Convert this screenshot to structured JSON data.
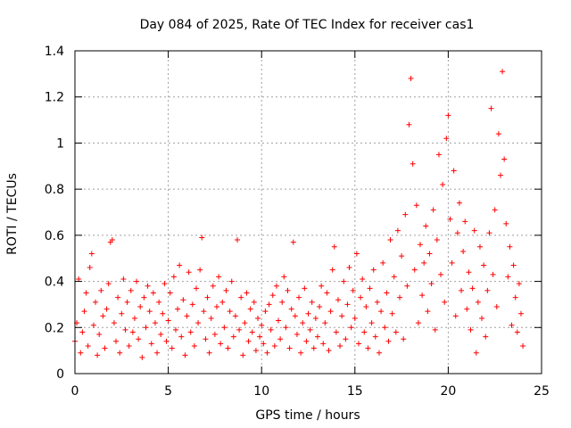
{
  "chart_data": {
    "type": "scatter",
    "title": "Day 084 of 2025, Rate Of TEC Index for receiver cas1",
    "xlabel": "GPS time / hours",
    "ylabel": "ROTI / TECUs",
    "xlim": [
      0,
      25
    ],
    "ylim": [
      0,
      1.4
    ],
    "x_ticks": [
      0,
      5,
      10,
      15,
      20,
      25
    ],
    "y_ticks": [
      0,
      0.2,
      0.4,
      0.6,
      0.8,
      1,
      1.2,
      1.4
    ],
    "grid": true,
    "marker": "+",
    "marker_color": "#ff0000",
    "points": [
      [
        0.0,
        0.14
      ],
      [
        0.1,
        0.22
      ],
      [
        0.2,
        0.41
      ],
      [
        0.3,
        0.09
      ],
      [
        0.4,
        0.18
      ],
      [
        0.5,
        0.27
      ],
      [
        0.6,
        0.35
      ],
      [
        0.7,
        0.12
      ],
      [
        0.8,
        0.46
      ],
      [
        0.9,
        0.52
      ],
      [
        1.0,
        0.21
      ],
      [
        1.1,
        0.31
      ],
      [
        1.2,
        0.08
      ],
      [
        1.3,
        0.17
      ],
      [
        1.4,
        0.36
      ],
      [
        1.5,
        0.25
      ],
      [
        1.6,
        0.11
      ],
      [
        1.7,
        0.28
      ],
      [
        1.8,
        0.39
      ],
      [
        1.9,
        0.57
      ],
      [
        2.0,
        0.58
      ],
      [
        2.1,
        0.22
      ],
      [
        2.2,
        0.14
      ],
      [
        2.3,
        0.33
      ],
      [
        2.4,
        0.09
      ],
      [
        2.5,
        0.26
      ],
      [
        2.6,
        0.41
      ],
      [
        2.7,
        0.19
      ],
      [
        2.8,
        0.31
      ],
      [
        2.9,
        0.12
      ],
      [
        3.0,
        0.36
      ],
      [
        3.1,
        0.18
      ],
      [
        3.2,
        0.24
      ],
      [
        3.3,
        0.4
      ],
      [
        3.4,
        0.15
      ],
      [
        3.5,
        0.29
      ],
      [
        3.6,
        0.07
      ],
      [
        3.7,
        0.33
      ],
      [
        3.8,
        0.2
      ],
      [
        3.9,
        0.38
      ],
      [
        4.0,
        0.27
      ],
      [
        4.1,
        0.13
      ],
      [
        4.2,
        0.35
      ],
      [
        4.3,
        0.22
      ],
      [
        4.4,
        0.09
      ],
      [
        4.5,
        0.31
      ],
      [
        4.6,
        0.17
      ],
      [
        4.7,
        0.26
      ],
      [
        4.8,
        0.39
      ],
      [
        4.9,
        0.14
      ],
      [
        5.0,
        0.23
      ],
      [
        5.1,
        0.35
      ],
      [
        5.2,
        0.11
      ],
      [
        5.3,
        0.42
      ],
      [
        5.4,
        0.19
      ],
      [
        5.5,
        0.28
      ],
      [
        5.6,
        0.47
      ],
      [
        5.7,
        0.16
      ],
      [
        5.8,
        0.32
      ],
      [
        5.9,
        0.08
      ],
      [
        6.0,
        0.25
      ],
      [
        6.1,
        0.44
      ],
      [
        6.2,
        0.18
      ],
      [
        6.3,
        0.3
      ],
      [
        6.4,
        0.12
      ],
      [
        6.5,
        0.37
      ],
      [
        6.6,
        0.22
      ],
      [
        6.7,
        0.45
      ],
      [
        6.8,
        0.59
      ],
      [
        6.9,
        0.27
      ],
      [
        7.0,
        0.15
      ],
      [
        7.1,
        0.33
      ],
      [
        7.2,
        0.09
      ],
      [
        7.3,
        0.24
      ],
      [
        7.4,
        0.38
      ],
      [
        7.5,
        0.17
      ],
      [
        7.6,
        0.29
      ],
      [
        7.7,
        0.42
      ],
      [
        7.8,
        0.13
      ],
      [
        7.9,
        0.31
      ],
      [
        8.0,
        0.2
      ],
      [
        8.1,
        0.36
      ],
      [
        8.2,
        0.11
      ],
      [
        8.3,
        0.27
      ],
      [
        8.4,
        0.4
      ],
      [
        8.5,
        0.16
      ],
      [
        8.6,
        0.25
      ],
      [
        8.7,
        0.58
      ],
      [
        8.8,
        0.19
      ],
      [
        8.9,
        0.33
      ],
      [
        9.0,
        0.08
      ],
      [
        9.1,
        0.22
      ],
      [
        9.2,
        0.35
      ],
      [
        9.3,
        0.14
      ],
      [
        9.4,
        0.28
      ],
      [
        9.5,
        0.18
      ],
      [
        9.6,
        0.31
      ],
      [
        9.7,
        0.1
      ],
      [
        9.8,
        0.24
      ],
      [
        9.9,
        0.16
      ],
      [
        10.0,
        0.21
      ],
      [
        10.1,
        0.13
      ],
      [
        10.2,
        0.27
      ],
      [
        10.3,
        0.09
      ],
      [
        10.4,
        0.3
      ],
      [
        10.5,
        0.19
      ],
      [
        10.6,
        0.34
      ],
      [
        10.7,
        0.12
      ],
      [
        10.8,
        0.38
      ],
      [
        10.9,
        0.23
      ],
      [
        11.0,
        0.15
      ],
      [
        11.1,
        0.31
      ],
      [
        11.2,
        0.42
      ],
      [
        11.3,
        0.2
      ],
      [
        11.4,
        0.36
      ],
      [
        11.5,
        0.11
      ],
      [
        11.6,
        0.28
      ],
      [
        11.7,
        0.57
      ],
      [
        11.8,
        0.25
      ],
      [
        11.9,
        0.17
      ],
      [
        12.0,
        0.33
      ],
      [
        12.1,
        0.09
      ],
      [
        12.2,
        0.22
      ],
      [
        12.3,
        0.37
      ],
      [
        12.4,
        0.14
      ],
      [
        12.5,
        0.26
      ],
      [
        12.6,
        0.19
      ],
      [
        12.7,
        0.31
      ],
      [
        12.8,
        0.11
      ],
      [
        12.9,
        0.24
      ],
      [
        13.0,
        0.16
      ],
      [
        13.1,
        0.29
      ],
      [
        13.2,
        0.38
      ],
      [
        13.3,
        0.13
      ],
      [
        13.4,
        0.22
      ],
      [
        13.5,
        0.35
      ],
      [
        13.6,
        0.1
      ],
      [
        13.7,
        0.27
      ],
      [
        13.8,
        0.45
      ],
      [
        13.9,
        0.55
      ],
      [
        14.0,
        0.18
      ],
      [
        14.1,
        0.32
      ],
      [
        14.2,
        0.12
      ],
      [
        14.3,
        0.25
      ],
      [
        14.4,
        0.4
      ],
      [
        14.5,
        0.15
      ],
      [
        14.6,
        0.3
      ],
      [
        14.7,
        0.46
      ],
      [
        14.8,
        0.2
      ],
      [
        14.9,
        0.36
      ],
      [
        15.0,
        0.24
      ],
      [
        15.1,
        0.52
      ],
      [
        15.2,
        0.13
      ],
      [
        15.3,
        0.33
      ],
      [
        15.4,
        0.41
      ],
      [
        15.5,
        0.18
      ],
      [
        15.6,
        0.29
      ],
      [
        15.7,
        0.11
      ],
      [
        15.8,
        0.37
      ],
      [
        15.9,
        0.22
      ],
      [
        16.0,
        0.45
      ],
      [
        16.1,
        0.16
      ],
      [
        16.2,
        0.31
      ],
      [
        16.3,
        0.09
      ],
      [
        16.4,
        0.27
      ],
      [
        16.5,
        0.48
      ],
      [
        16.6,
        0.2
      ],
      [
        16.7,
        0.35
      ],
      [
        16.8,
        0.14
      ],
      [
        16.9,
        0.58
      ],
      [
        17.0,
        0.26
      ],
      [
        17.1,
        0.42
      ],
      [
        17.2,
        0.18
      ],
      [
        17.3,
        0.62
      ],
      [
        17.4,
        0.33
      ],
      [
        17.5,
        0.51
      ],
      [
        17.6,
        0.15
      ],
      [
        17.7,
        0.69
      ],
      [
        17.8,
        0.38
      ],
      [
        17.9,
        1.08
      ],
      [
        18.0,
        1.28
      ],
      [
        18.1,
        0.91
      ],
      [
        18.2,
        0.45
      ],
      [
        18.3,
        0.73
      ],
      [
        18.4,
        0.22
      ],
      [
        18.5,
        0.56
      ],
      [
        18.6,
        0.34
      ],
      [
        18.7,
        0.48
      ],
      [
        18.8,
        0.64
      ],
      [
        18.9,
        0.27
      ],
      [
        19.0,
        0.52
      ],
      [
        19.1,
        0.39
      ],
      [
        19.2,
        0.71
      ],
      [
        19.3,
        0.19
      ],
      [
        19.4,
        0.58
      ],
      [
        19.5,
        0.95
      ],
      [
        19.6,
        0.43
      ],
      [
        19.7,
        0.82
      ],
      [
        19.8,
        0.31
      ],
      [
        19.9,
        1.02
      ],
      [
        20.0,
        1.12
      ],
      [
        20.1,
        0.67
      ],
      [
        20.2,
        0.48
      ],
      [
        20.3,
        0.88
      ],
      [
        20.4,
        0.25
      ],
      [
        20.5,
        0.61
      ],
      [
        20.6,
        0.74
      ],
      [
        20.7,
        0.36
      ],
      [
        20.8,
        0.53
      ],
      [
        20.9,
        0.66
      ],
      [
        21.0,
        0.28
      ],
      [
        21.1,
        0.44
      ],
      [
        21.2,
        0.19
      ],
      [
        21.3,
        0.37
      ],
      [
        21.4,
        0.62
      ],
      [
        21.5,
        0.09
      ],
      [
        21.6,
        0.31
      ],
      [
        21.7,
        0.55
      ],
      [
        21.8,
        0.24
      ],
      [
        21.9,
        0.47
      ],
      [
        22.0,
        0.16
      ],
      [
        22.1,
        0.36
      ],
      [
        22.2,
        0.61
      ],
      [
        22.3,
        1.15
      ],
      [
        22.4,
        0.43
      ],
      [
        22.5,
        0.71
      ],
      [
        22.6,
        0.29
      ],
      [
        22.7,
        1.04
      ],
      [
        22.8,
        0.86
      ],
      [
        22.9,
        1.31
      ],
      [
        23.0,
        0.93
      ],
      [
        23.1,
        0.65
      ],
      [
        23.2,
        0.42
      ],
      [
        23.3,
        0.55
      ],
      [
        23.4,
        0.21
      ],
      [
        23.5,
        0.47
      ],
      [
        23.6,
        0.33
      ],
      [
        23.7,
        0.18
      ],
      [
        23.8,
        0.39
      ],
      [
        23.9,
        0.26
      ],
      [
        24.0,
        0.12
      ]
    ]
  }
}
